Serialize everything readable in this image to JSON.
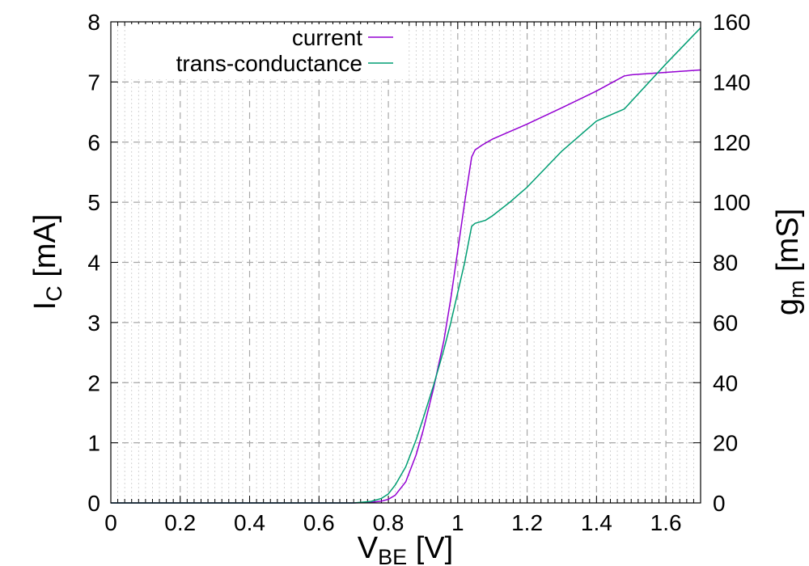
{
  "chart_data": {
    "type": "line",
    "xlabel_main": "V",
    "xlabel_sub": "BE",
    "xlabel_rest": " [V]",
    "ylabel_main": "I",
    "ylabel_sub": "C",
    "ylabel_rest": " [mA]",
    "y2label_main": "g",
    "y2label_sub": "m",
    "y2label_rest": " [mS]",
    "xlim": [
      0,
      1.7
    ],
    "ylim": [
      0,
      8
    ],
    "y2lim": [
      0,
      160
    ],
    "x_ticks": [
      "0",
      "0.2",
      "0.4",
      "0.6",
      "0.8",
      "1",
      "1.2",
      "1.4",
      "1.6"
    ],
    "y_ticks": [
      "0",
      "1",
      "2",
      "3",
      "4",
      "5",
      "6",
      "7",
      "8"
    ],
    "y2_ticks": [
      "0",
      "20",
      "40",
      "60",
      "80",
      "100",
      "120",
      "140",
      "160"
    ],
    "grid": true,
    "legend_position": "top-center",
    "series": [
      {
        "name": "current",
        "axis": "left",
        "color": "#9400d3",
        "x": [
          0,
          0.7,
          0.75,
          0.78,
          0.8,
          0.82,
          0.85,
          0.88,
          0.9,
          0.93,
          0.96,
          0.98,
          1.0,
          1.02,
          1.04,
          1.05,
          1.07,
          1.1,
          1.2,
          1.3,
          1.4,
          1.48,
          1.5,
          1.6,
          1.7
        ],
        "y": [
          0,
          0,
          0.01,
          0.03,
          0.06,
          0.13,
          0.35,
          0.8,
          1.2,
          1.9,
          2.7,
          3.4,
          4.2,
          5.0,
          5.75,
          5.87,
          5.95,
          6.05,
          6.3,
          6.57,
          6.85,
          7.1,
          7.12,
          7.16,
          7.2
        ]
      },
      {
        "name": "trans-conductance",
        "axis": "right",
        "color": "#009e73",
        "x": [
          0,
          0.7,
          0.75,
          0.78,
          0.8,
          0.82,
          0.85,
          0.88,
          0.9,
          0.93,
          0.96,
          0.98,
          1.0,
          1.02,
          1.04,
          1.05,
          1.08,
          1.1,
          1.15,
          1.2,
          1.3,
          1.4,
          1.48,
          1.5,
          1.6,
          1.7
        ],
        "y": [
          0,
          0,
          0.5,
          1.5,
          3,
          6,
          12,
          21,
          28,
          39,
          51,
          60,
          70,
          80,
          92,
          93,
          94,
          95.5,
          100,
          105,
          117,
          127,
          131,
          133.5,
          146,
          158
        ]
      }
    ]
  }
}
